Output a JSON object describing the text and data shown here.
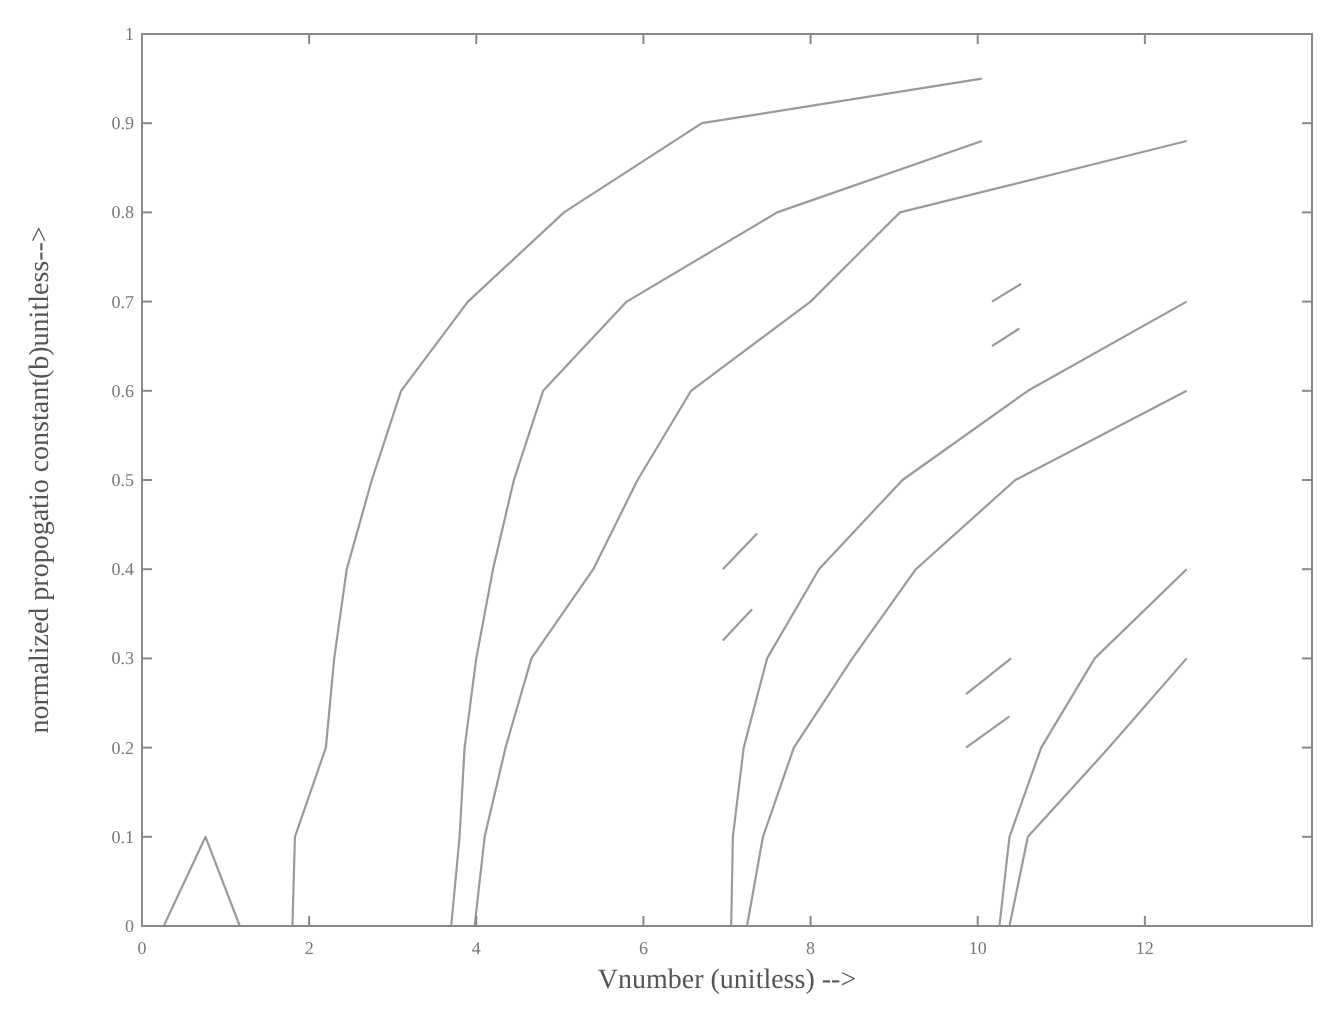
{
  "chart_data": {
    "type": "line",
    "xlabel": "Vnumber (unitless) -->",
    "ylabel": "normalized propogatio constant(b)unitless-->",
    "xlim": [
      0,
      14
    ],
    "ylim": [
      0,
      1
    ],
    "xticks": [
      0,
      2,
      4,
      6,
      8,
      10,
      12
    ],
    "yticks": [
      0,
      0.1,
      0.2,
      0.3,
      0.4,
      0.5,
      0.6,
      0.7,
      0.8,
      0.9,
      1
    ],
    "grid": false,
    "marker": "none",
    "line_style": "solid",
    "series": [
      {
        "color": "#9a9a9a",
        "x": [
          0.26,
          0.76,
          1.17
        ],
        "values": [
          0,
          0.1,
          0
        ]
      },
      {
        "color": "#9a9a9a",
        "x": [
          1.8,
          1.83,
          2.2,
          2.3,
          2.45,
          2.75,
          3.1,
          3.9,
          5.05,
          6.7,
          10.05
        ],
        "values": [
          0,
          0.1,
          0.2,
          0.3,
          0.4,
          0.5,
          0.6,
          0.7,
          0.8,
          0.9,
          0.95
        ]
      },
      {
        "color": "#9a9a9a",
        "x": [
          3.7,
          3.8,
          3.86,
          4.0,
          4.2,
          4.45,
          4.8,
          5.8,
          7.6,
          10.05
        ],
        "values": [
          0,
          0.1,
          0.2,
          0.3,
          0.4,
          0.5,
          0.6,
          0.7,
          0.8,
          0.88
        ]
      },
      {
        "color": "#9a9a9a",
        "x": [
          3.98,
          4.1,
          4.35,
          4.66,
          5.4,
          5.93,
          6.57,
          8.0,
          9.07,
          12.5
        ],
        "values": [
          0,
          0.1,
          0.2,
          0.3,
          0.4,
          0.5,
          0.6,
          0.7,
          0.8,
          0.88
        ]
      },
      {
        "color": "#9a9a9a",
        "x": [
          7.05,
          7.07,
          7.2,
          7.48,
          8.1,
          9.1,
          10.6,
          12.5
        ],
        "values": [
          0,
          0.1,
          0.2,
          0.3,
          0.4,
          0.5,
          0.6,
          0.7
        ]
      },
      {
        "color": "#9a9a9a",
        "x": [
          7.24,
          7.43,
          7.8,
          8.5,
          9.26,
          10.45,
          12.5
        ],
        "values": [
          0,
          0.1,
          0.2,
          0.3,
          0.4,
          0.5,
          0.6
        ]
      },
      {
        "color": "#9a9a9a",
        "x": [
          10.26,
          10.38,
          10.76,
          11.4,
          12.5
        ],
        "values": [
          0,
          0.1,
          0.2,
          0.3,
          0.4
        ]
      },
      {
        "color": "#9a9a9a",
        "x": [
          10.38,
          10.6,
          11.57,
          12.5
        ],
        "values": [
          0,
          0.1,
          0.2,
          0.3
        ]
      },
      {
        "color": "#9a9a9a",
        "x": [
          6.95,
          7.36
        ],
        "values": [
          0.4,
          0.44
        ]
      },
      {
        "color": "#9a9a9a",
        "x": [
          6.95,
          7.3
        ],
        "values": [
          0.32,
          0.355
        ]
      },
      {
        "color": "#9a9a9a",
        "x": [
          9.86,
          10.4
        ],
        "values": [
          0.26,
          0.3
        ]
      },
      {
        "color": "#9a9a9a",
        "x": [
          9.86,
          10.38
        ],
        "values": [
          0.2,
          0.235
        ]
      },
      {
        "color": "#9a9a9a",
        "x": [
          10.17,
          10.52
        ],
        "values": [
          0.7,
          0.72
        ]
      },
      {
        "color": "#9a9a9a",
        "x": [
          10.17,
          10.5
        ],
        "values": [
          0.65,
          0.67
        ]
      }
    ]
  }
}
